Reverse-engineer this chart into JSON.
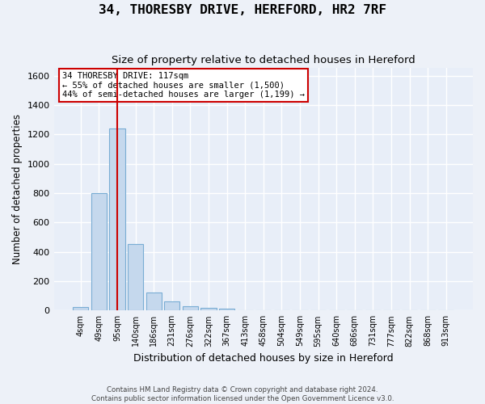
{
  "title": "34, THORESBY DRIVE, HEREFORD, HR2 7RF",
  "subtitle": "Size of property relative to detached houses in Hereford",
  "xlabel": "Distribution of detached houses by size in Hereford",
  "ylabel": "Number of detached properties",
  "bar_color": "#c5d8ed",
  "bar_edge_color": "#7aadd4",
  "background_color": "#e8eef8",
  "grid_color": "#ffffff",
  "bin_labels": [
    "4sqm",
    "49sqm",
    "95sqm",
    "140sqm",
    "186sqm",
    "231sqm",
    "276sqm",
    "322sqm",
    "367sqm",
    "413sqm",
    "458sqm",
    "504sqm",
    "549sqm",
    "595sqm",
    "640sqm",
    "686sqm",
    "731sqm",
    "777sqm",
    "822sqm",
    "868sqm",
    "913sqm"
  ],
  "bar_heights": [
    25,
    800,
    1240,
    455,
    125,
    60,
    28,
    18,
    12,
    0,
    0,
    0,
    0,
    0,
    0,
    0,
    0,
    0,
    0,
    0,
    0
  ],
  "ylim": [
    0,
    1650
  ],
  "yticks": [
    0,
    200,
    400,
    600,
    800,
    1000,
    1200,
    1400,
    1600
  ],
  "property_bin_index": 2,
  "annotation_line": "34 THORESBY DRIVE: 117sqm",
  "annotation_line2": "← 55% of detached houses are smaller (1,500)",
  "annotation_line3": "44% of semi-detached houses are larger (1,199) →",
  "vline_color": "#cc0000",
  "annotation_box_edge_color": "#cc0000",
  "footer_line1": "Contains HM Land Registry data © Crown copyright and database right 2024.",
  "footer_line2": "Contains public sector information licensed under the Open Government Licence v3.0."
}
